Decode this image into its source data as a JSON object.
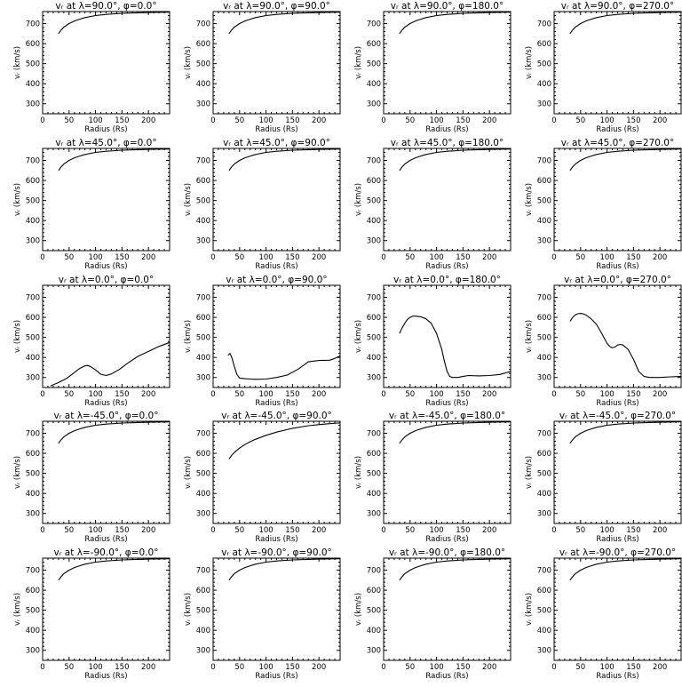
{
  "figure": {
    "xlabel": "Radius (Rs)",
    "ylabel": "vᵣ (km/s)",
    "xlim": [
      0,
      240
    ],
    "ylim": [
      250,
      760
    ],
    "xticks": [
      0,
      50,
      100,
      150,
      200
    ],
    "yticks": [
      300,
      400,
      500,
      600,
      700
    ]
  },
  "chart_data": [
    {
      "type": "line",
      "title": "vᵣ at λ=90.0°, φ=0.0°",
      "xlabel": "Radius (Rs)",
      "ylabel": "vᵣ (km/s)",
      "xlim": [
        0,
        240
      ],
      "ylim": [
        250,
        760
      ],
      "series": [
        {
          "x": [
            30,
            35,
            40,
            50,
            60,
            70,
            80,
            100,
            120,
            150,
            180,
            210,
            240
          ],
          "y": [
            650,
            668,
            682,
            700,
            713,
            722,
            730,
            740,
            746,
            751,
            754,
            756,
            757
          ]
        }
      ]
    },
    {
      "type": "line",
      "title": "vᵣ at λ=90.0°, φ=90.0°",
      "xlabel": "Radius (Rs)",
      "ylabel": "vᵣ (km/s)",
      "xlim": [
        0,
        240
      ],
      "ylim": [
        250,
        760
      ],
      "series": [
        {
          "x": [
            30,
            35,
            40,
            50,
            60,
            70,
            80,
            100,
            120,
            150,
            180,
            210,
            240
          ],
          "y": [
            650,
            668,
            682,
            700,
            713,
            722,
            730,
            740,
            746,
            751,
            754,
            756,
            757
          ]
        }
      ]
    },
    {
      "type": "line",
      "title": "vᵣ at λ=90.0°, φ=180.0°",
      "xlabel": "Radius (Rs)",
      "ylabel": "vᵣ (km/s)",
      "xlim": [
        0,
        240
      ],
      "ylim": [
        250,
        760
      ],
      "series": [
        {
          "x": [
            30,
            35,
            40,
            50,
            60,
            70,
            80,
            100,
            120,
            150,
            180,
            210,
            240
          ],
          "y": [
            650,
            668,
            682,
            700,
            713,
            722,
            730,
            740,
            746,
            751,
            754,
            756,
            757
          ]
        }
      ]
    },
    {
      "type": "line",
      "title": "vᵣ at λ=90.0°, φ=270.0°",
      "xlabel": "Radius (Rs)",
      "ylabel": "vᵣ (km/s)",
      "xlim": [
        0,
        240
      ],
      "ylim": [
        250,
        760
      ],
      "series": [
        {
          "x": [
            30,
            35,
            40,
            50,
            60,
            70,
            80,
            100,
            120,
            150,
            180,
            210,
            240
          ],
          "y": [
            650,
            668,
            682,
            700,
            713,
            722,
            730,
            740,
            746,
            751,
            754,
            756,
            757
          ]
        }
      ]
    },
    {
      "type": "line",
      "title": "vᵣ at λ=45.0°, φ=0.0°",
      "xlabel": "Radius (Rs)",
      "ylabel": "vᵣ (km/s)",
      "xlim": [
        0,
        240
      ],
      "ylim": [
        250,
        760
      ],
      "series": [
        {
          "x": [
            30,
            35,
            40,
            50,
            60,
            70,
            80,
            100,
            120,
            150,
            180,
            210,
            240
          ],
          "y": [
            650,
            668,
            682,
            700,
            713,
            722,
            730,
            740,
            746,
            751,
            754,
            756,
            757
          ]
        }
      ]
    },
    {
      "type": "line",
      "title": "vᵣ at λ=45.0°, φ=90.0°",
      "xlabel": "Radius (Rs)",
      "ylabel": "vᵣ (km/s)",
      "xlim": [
        0,
        240
      ],
      "ylim": [
        250,
        760
      ],
      "series": [
        {
          "x": [
            30,
            35,
            40,
            50,
            60,
            70,
            80,
            100,
            120,
            150,
            180,
            210,
            240
          ],
          "y": [
            650,
            668,
            682,
            700,
            713,
            722,
            730,
            740,
            746,
            751,
            754,
            756,
            757
          ]
        }
      ]
    },
    {
      "type": "line",
      "title": "vᵣ at λ=45.0°, φ=180.0°",
      "xlabel": "Radius (Rs)",
      "ylabel": "vᵣ (km/s)",
      "xlim": [
        0,
        240
      ],
      "ylim": [
        250,
        760
      ],
      "series": [
        {
          "x": [
            30,
            35,
            40,
            50,
            60,
            70,
            80,
            100,
            120,
            150,
            180,
            210,
            240
          ],
          "y": [
            650,
            668,
            682,
            700,
            713,
            722,
            730,
            740,
            746,
            751,
            754,
            756,
            757
          ]
        }
      ]
    },
    {
      "type": "line",
      "title": "vᵣ at λ=45.0°, φ=270.0°",
      "xlabel": "Radius (Rs)",
      "ylabel": "vᵣ (km/s)",
      "xlim": [
        0,
        240
      ],
      "ylim": [
        250,
        760
      ],
      "series": [
        {
          "x": [
            30,
            35,
            40,
            50,
            60,
            70,
            80,
            100,
            120,
            150,
            180,
            210,
            240
          ],
          "y": [
            650,
            668,
            682,
            700,
            713,
            722,
            730,
            740,
            746,
            751,
            754,
            756,
            757
          ]
        }
      ]
    },
    {
      "type": "line",
      "title": "vᵣ at λ=0.0°, φ=0.0°",
      "xlabel": "Radius (Rs)",
      "ylabel": "vᵣ (km/s)",
      "xlim": [
        0,
        240
      ],
      "ylim": [
        250,
        760
      ],
      "series": [
        {
          "x": [
            15,
            30,
            45,
            60,
            70,
            80,
            85,
            90,
            100,
            110,
            120,
            130,
            145,
            160,
            180,
            200,
            220,
            240
          ],
          "y": [
            258,
            275,
            295,
            325,
            345,
            358,
            360,
            355,
            338,
            316,
            310,
            318,
            340,
            370,
            405,
            430,
            455,
            475
          ]
        }
      ]
    },
    {
      "type": "line",
      "title": "vᵣ at λ=0.0°, φ=90.0°",
      "xlabel": "Radius (Rs)",
      "ylabel": "vᵣ (km/s)",
      "xlim": [
        0,
        240
      ],
      "ylim": [
        250,
        760
      ],
      "series": [
        {
          "x": [
            28,
            32,
            36,
            40,
            45,
            50,
            60,
            70,
            80,
            100,
            120,
            140,
            160,
            180,
            200,
            220,
            230,
            240
          ],
          "y": [
            410,
            420,
            395,
            355,
            315,
            297,
            294,
            292,
            291,
            292,
            300,
            312,
            340,
            378,
            385,
            386,
            395,
            408
          ]
        }
      ]
    },
    {
      "type": "line",
      "title": "vᵣ at λ=0.0°, φ=180.0°",
      "xlabel": "Radius (Rs)",
      "ylabel": "vᵣ (km/s)",
      "xlim": [
        0,
        240
      ],
      "ylim": [
        250,
        760
      ],
      "series": [
        {
          "x": [
            30,
            35,
            40,
            45,
            50,
            55,
            60,
            70,
            80,
            90,
            100,
            110,
            115,
            120,
            125,
            130,
            140,
            150,
            160,
            180,
            200,
            220,
            240
          ],
          "y": [
            520,
            548,
            570,
            590,
            600,
            606,
            606,
            603,
            593,
            570,
            520,
            440,
            380,
            330,
            305,
            300,
            300,
            305,
            310,
            308,
            310,
            315,
            330
          ]
        }
      ]
    },
    {
      "type": "line",
      "title": "vᵣ at λ=0.0°, φ=270.0°",
      "xlabel": "Radius (Rs)",
      "ylabel": "vᵣ (km/s)",
      "xlim": [
        0,
        240
      ],
      "ylim": [
        250,
        760
      ],
      "series": [
        {
          "x": [
            30,
            35,
            40,
            45,
            50,
            55,
            60,
            70,
            80,
            90,
            100,
            105,
            110,
            115,
            120,
            125,
            130,
            140,
            150,
            160,
            170,
            180,
            200,
            220,
            240
          ],
          "y": [
            580,
            600,
            612,
            618,
            620,
            617,
            612,
            593,
            565,
            520,
            470,
            455,
            448,
            452,
            462,
            465,
            462,
            440,
            390,
            330,
            305,
            300,
            300,
            303,
            305
          ]
        }
      ]
    },
    {
      "type": "line",
      "title": "vᵣ at λ=-45.0°, φ=0.0°",
      "xlabel": "Radius (Rs)",
      "ylabel": "vᵣ (km/s)",
      "xlim": [
        0,
        240
      ],
      "ylim": [
        250,
        760
      ],
      "series": [
        {
          "x": [
            30,
            35,
            40,
            50,
            60,
            70,
            80,
            100,
            120,
            150,
            180,
            210,
            240
          ],
          "y": [
            650,
            668,
            682,
            700,
            713,
            722,
            730,
            740,
            746,
            751,
            754,
            756,
            757
          ]
        }
      ]
    },
    {
      "type": "line",
      "title": "vᵣ at λ=-45.0°, φ=90.0°",
      "xlabel": "Radius (Rs)",
      "ylabel": "vᵣ (km/s)",
      "xlim": [
        0,
        240
      ],
      "ylim": [
        250,
        760
      ],
      "series": [
        {
          "x": [
            30,
            35,
            40,
            50,
            60,
            70,
            80,
            100,
            120,
            150,
            180,
            210,
            240
          ],
          "y": [
            572,
            590,
            604,
            626,
            644,
            658,
            670,
            690,
            706,
            725,
            738,
            746,
            752
          ]
        }
      ]
    },
    {
      "type": "line",
      "title": "vᵣ at λ=-45.0°, φ=180.0°",
      "xlabel": "Radius (Rs)",
      "ylabel": "vᵣ (km/s)",
      "xlim": [
        0,
        240
      ],
      "ylim": [
        250,
        760
      ],
      "series": [
        {
          "x": [
            30,
            35,
            40,
            50,
            60,
            70,
            80,
            100,
            120,
            150,
            180,
            210,
            240
          ],
          "y": [
            650,
            668,
            682,
            700,
            713,
            722,
            730,
            740,
            746,
            751,
            754,
            756,
            757
          ]
        }
      ]
    },
    {
      "type": "line",
      "title": "vᵣ at λ=-45.0°, φ=270.0°",
      "xlabel": "Radius (Rs)",
      "ylabel": "vᵣ (km/s)",
      "xlim": [
        0,
        240
      ],
      "ylim": [
        250,
        760
      ],
      "series": [
        {
          "x": [
            30,
            35,
            40,
            50,
            60,
            70,
            80,
            100,
            120,
            150,
            180,
            210,
            240
          ],
          "y": [
            650,
            668,
            682,
            700,
            713,
            722,
            730,
            740,
            746,
            751,
            754,
            756,
            757
          ]
        }
      ]
    },
    {
      "type": "line",
      "title": "vᵣ at λ=-90.0°, φ=0.0°",
      "xlabel": "Radius (Rs)",
      "ylabel": "vᵣ (km/s)",
      "xlim": [
        0,
        240
      ],
      "ylim": [
        250,
        760
      ],
      "series": [
        {
          "x": [
            30,
            35,
            40,
            50,
            60,
            70,
            80,
            100,
            120,
            150,
            180,
            210,
            240
          ],
          "y": [
            650,
            668,
            682,
            700,
            713,
            722,
            730,
            740,
            746,
            751,
            754,
            756,
            757
          ]
        }
      ]
    },
    {
      "type": "line",
      "title": "vᵣ at λ=-90.0°, φ=90.0°",
      "xlabel": "Radius (Rs)",
      "ylabel": "vᵣ (km/s)",
      "xlim": [
        0,
        240
      ],
      "ylim": [
        250,
        760
      ],
      "series": [
        {
          "x": [
            30,
            35,
            40,
            50,
            60,
            70,
            80,
            100,
            120,
            150,
            180,
            210,
            240
          ],
          "y": [
            650,
            668,
            682,
            700,
            713,
            722,
            730,
            740,
            746,
            751,
            754,
            756,
            757
          ]
        }
      ]
    },
    {
      "type": "line",
      "title": "vᵣ at λ=-90.0°, φ=180.0°",
      "xlabel": "Radius (Rs)",
      "ylabel": "vᵣ (km/s)",
      "xlim": [
        0,
        240
      ],
      "ylim": [
        250,
        760
      ],
      "series": [
        {
          "x": [
            30,
            35,
            40,
            50,
            60,
            70,
            80,
            100,
            120,
            150,
            180,
            210,
            240
          ],
          "y": [
            650,
            668,
            682,
            700,
            713,
            722,
            730,
            740,
            746,
            751,
            754,
            756,
            757
          ]
        }
      ]
    },
    {
      "type": "line",
      "title": "vᵣ at λ=-90.0°, φ=270.0°",
      "xlabel": "Radius (Rs)",
      "ylabel": "vᵣ (km/s)",
      "xlim": [
        0,
        240
      ],
      "ylim": [
        250,
        760
      ],
      "series": [
        {
          "x": [
            30,
            35,
            40,
            50,
            60,
            70,
            80,
            100,
            120,
            150,
            180,
            210,
            240
          ],
          "y": [
            650,
            668,
            682,
            700,
            713,
            722,
            730,
            740,
            746,
            751,
            754,
            756,
            757
          ]
        }
      ]
    }
  ]
}
